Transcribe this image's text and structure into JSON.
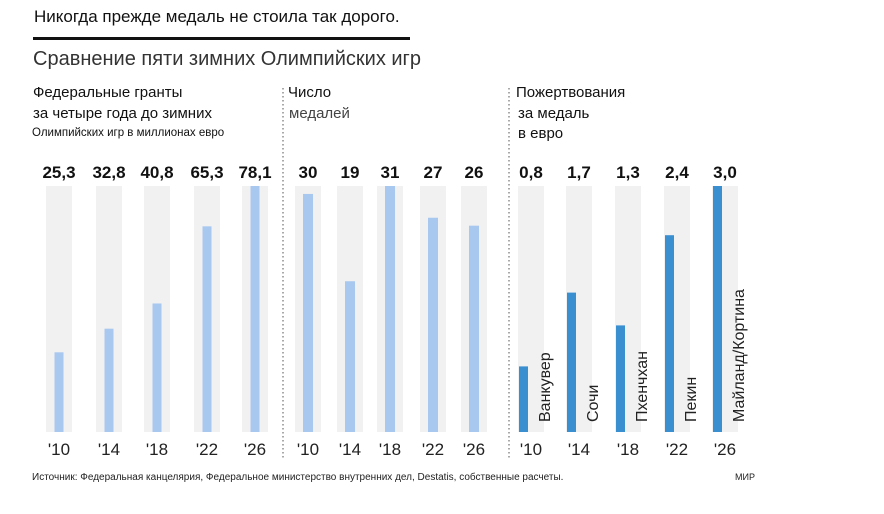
{
  "headline": "Никогда прежде медаль не стоила так дорого.",
  "subtitle": "Сравнение пяти зимних Олимпийских игр",
  "panels": {
    "grants": {
      "title": "Федеральные гранты",
      "sub1": "за четыре года до зимних",
      "sub2": "Олимпийских игр в миллионах евро"
    },
    "medals": {
      "title": "Число",
      "sub1": "медалей"
    },
    "donations": {
      "title": "Пожертвования",
      "sub1": "за медаль",
      "sub2": "в евро"
    }
  },
  "source": "Источник: Федеральная канцелярия, Федеральное министерство внутренних дел, Destatis, собственные расчеты.",
  "credit": "МИР",
  "colors": {
    "light_bar": "#a9c8ef",
    "dark_bar": "#3a8fd1",
    "track": "#f1f1f1"
  },
  "chart_data": [
    {
      "type": "bar",
      "title": "Федеральные гранты",
      "categories": [
        "'10",
        "'14",
        "'18",
        "'22",
        "'26"
      ],
      "values": [
        25.3,
        32.8,
        40.8,
        65.3,
        78.1
      ],
      "value_labels": [
        "25,3",
        "32,8",
        "40,8",
        "65,3",
        "78,1"
      ],
      "ylim": [
        0,
        78.1
      ]
    },
    {
      "type": "bar",
      "title": "Число медалей",
      "categories": [
        "'10",
        "'14",
        "'18",
        "'22",
        "'26"
      ],
      "values": [
        30,
        19,
        31,
        27,
        26
      ],
      "value_labels": [
        "30",
        "19",
        "31",
        "27",
        "26"
      ],
      "ylim": [
        0,
        31
      ]
    },
    {
      "type": "bar",
      "title": "Пожертвования за медаль в евро",
      "categories": [
        "'10",
        "'14",
        "'18",
        "'22",
        "'26"
      ],
      "values": [
        0.8,
        1.7,
        1.3,
        2.4,
        3.0
      ],
      "value_labels": [
        "0,8",
        "1,7",
        "1,3",
        "2,4",
        "3,0"
      ],
      "host_cities": [
        "Ванкувер",
        "Сочи",
        "Пхенчхан",
        "Пекин",
        "Майланд/Кортина"
      ],
      "ylim": [
        0,
        3.0
      ]
    }
  ]
}
